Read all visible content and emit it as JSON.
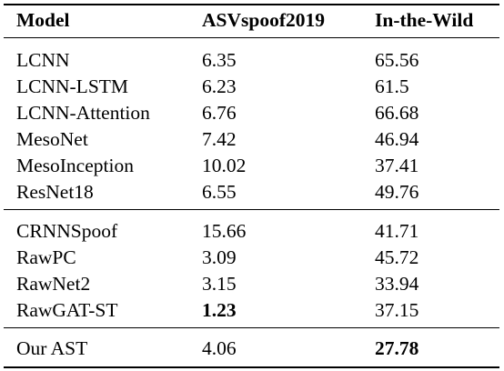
{
  "table": {
    "headers": [
      "Model",
      "ASVspoof2019",
      "In-the-Wild"
    ],
    "groups": [
      [
        {
          "model": "LCNN",
          "asvspoof2019": "6.35",
          "in_the_wild": "65.56"
        },
        {
          "model": "LCNN-LSTM",
          "asvspoof2019": "6.23",
          "in_the_wild": "61.5"
        },
        {
          "model": "LCNN-Attention",
          "asvspoof2019": "6.76",
          "in_the_wild": "66.68"
        },
        {
          "model": "MesoNet",
          "asvspoof2019": "7.42",
          "in_the_wild": "46.94"
        },
        {
          "model": "MesoInception",
          "asvspoof2019": "10.02",
          "in_the_wild": "37.41"
        },
        {
          "model": "ResNet18",
          "asvspoof2019": "6.55",
          "in_the_wild": "49.76"
        }
      ],
      [
        {
          "model": "CRNNSpoof",
          "asvspoof2019": "15.66",
          "in_the_wild": "41.71"
        },
        {
          "model": "RawPC",
          "asvspoof2019": "3.09",
          "in_the_wild": "45.72"
        },
        {
          "model": "RawNet2",
          "asvspoof2019": "3.15",
          "in_the_wild": "33.94"
        },
        {
          "model": "RawGAT-ST",
          "asvspoof2019": "1.23",
          "in_the_wild": "37.15",
          "bold": "asvspoof2019"
        }
      ],
      [
        {
          "model": "Our AST",
          "asvspoof2019": "4.06",
          "in_the_wild": "27.78",
          "bold": "in_the_wild"
        }
      ]
    ]
  }
}
